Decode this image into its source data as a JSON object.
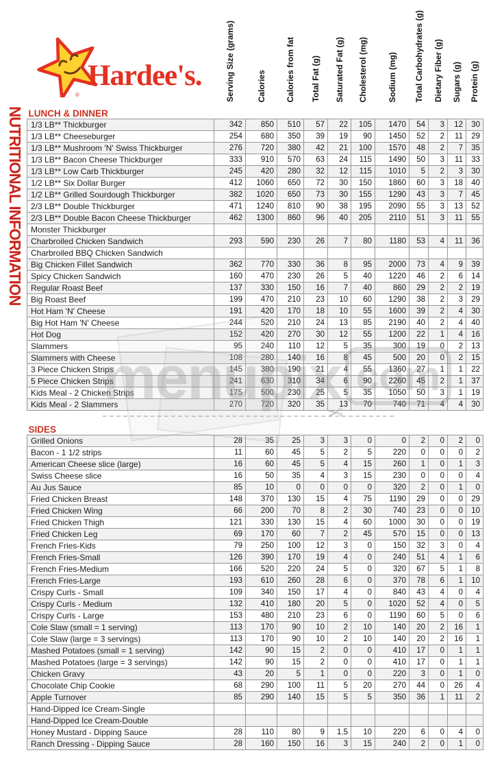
{
  "brand": {
    "wordmark": "Hardee's.",
    "star_icon": "smiling-star",
    "registered_mark": "®",
    "colors": {
      "red": "#e33122",
      "star_yellow": "#ffd12f",
      "face_brown": "#6b3a14"
    }
  },
  "sidebar_title": "NUTRITIONAL INFORMATION",
  "columns": [
    "Serving Size (grams)",
    "Calories",
    "Calories from fat",
    "Total Fat (g)",
    "Saturated Fat (g)",
    "Cholesterol (mg)",
    "Sodium (mg)",
    "Total Carbohydrates (g)",
    "Dietary Fiber (g)",
    "Sugars (g)",
    "Protein (g)"
  ],
  "sections": [
    {
      "title": "LUNCH & DINNER",
      "rows": [
        {
          "name": "1/3 LB** Thickburger",
          "values": [
            342,
            850,
            510,
            57,
            22,
            105,
            1470,
            54,
            3,
            12,
            30
          ]
        },
        {
          "name": "1/3 LB** Cheeseburger",
          "values": [
            254,
            680,
            350,
            39,
            19,
            90,
            1450,
            52,
            2,
            11,
            29
          ]
        },
        {
          "name": "1/3 LB** Mushroom 'N' Swiss Thickburger",
          "values": [
            276,
            720,
            380,
            42,
            21,
            100,
            1570,
            48,
            2,
            7,
            35
          ]
        },
        {
          "name": "1/3 LB** Bacon Cheese Thickburger",
          "values": [
            333,
            910,
            570,
            63,
            24,
            115,
            1490,
            50,
            3,
            11,
            33
          ]
        },
        {
          "name": "1/3 LB** Low Carb Thickburger",
          "values": [
            245,
            420,
            280,
            32,
            12,
            115,
            1010,
            5,
            2,
            3,
            30
          ]
        },
        {
          "name": "1/2 LB** Six Dollar Burger",
          "values": [
            412,
            1060,
            650,
            72,
            30,
            150,
            1860,
            60,
            3,
            18,
            40
          ]
        },
        {
          "name": "1/2 LB** Grilled Sourdough Thickburger",
          "values": [
            382,
            1020,
            650,
            73,
            30,
            155,
            1290,
            43,
            3,
            7,
            45
          ]
        },
        {
          "name": "2/3 LB** Double Thickburger",
          "values": [
            471,
            1240,
            810,
            90,
            38,
            195,
            2090,
            55,
            3,
            13,
            52
          ]
        },
        {
          "name": "2/3 LB** Double Bacon Cheese Thickburger",
          "values": [
            462,
            1300,
            860,
            96,
            40,
            205,
            2110,
            51,
            3,
            11,
            55
          ]
        },
        {
          "name": "Monster Thickburger",
          "values": []
        },
        {
          "name": "Charbroiled Chicken Sandwich",
          "values": [
            293,
            590,
            230,
            26,
            7,
            80,
            1180,
            53,
            4,
            11,
            36
          ]
        },
        {
          "name": "Charbroiled BBQ Chicken Sandwich",
          "values": []
        },
        {
          "name": "Big Chicken Fillet Sandwich",
          "values": [
            362,
            770,
            330,
            36,
            8,
            95,
            2000,
            73,
            4,
            9,
            39
          ]
        },
        {
          "name": "Spicy Chicken Sandwich",
          "values": [
            160,
            470,
            230,
            26,
            5,
            40,
            1220,
            46,
            2,
            6,
            14
          ]
        },
        {
          "name": "Regular Roast Beef",
          "values": [
            137,
            330,
            150,
            16,
            7,
            40,
            860,
            29,
            2,
            2,
            19
          ]
        },
        {
          "name": "Big Roast Beef",
          "values": [
            199,
            470,
            210,
            23,
            10,
            60,
            1290,
            38,
            2,
            3,
            29
          ]
        },
        {
          "name": "Hot Ham 'N' Cheese",
          "values": [
            191,
            420,
            170,
            18,
            10,
            55,
            1600,
            39,
            2,
            4,
            30
          ]
        },
        {
          "name": "Big Hot Ham 'N' Cheese",
          "values": [
            244,
            520,
            210,
            24,
            13,
            85,
            2190,
            40,
            2,
            4,
            40
          ]
        },
        {
          "name": "Hot Dog",
          "values": [
            152,
            420,
            270,
            30,
            12,
            55,
            1200,
            22,
            1,
            4,
            16
          ]
        },
        {
          "name": "Slammers",
          "values": [
            95,
            240,
            110,
            12,
            5,
            35,
            300,
            19,
            0,
            2,
            13
          ]
        },
        {
          "name": "Slammers with Cheese",
          "values": [
            108,
            280,
            140,
            16,
            8,
            45,
            500,
            20,
            0,
            2,
            15
          ]
        },
        {
          "name": "3 Piece Chicken Strips",
          "values": [
            145,
            380,
            190,
            21,
            4,
            55,
            1360,
            27,
            1,
            1,
            22
          ]
        },
        {
          "name": "5 Piece Chicken Strips",
          "values": [
            241,
            630,
            310,
            34,
            6,
            90,
            2260,
            45,
            2,
            1,
            37
          ]
        },
        {
          "name": "Kids Meal - 2 Chicken Strips",
          "values": [
            175,
            500,
            230,
            25,
            5,
            35,
            1050,
            50,
            3,
            1,
            19
          ]
        },
        {
          "name": "Kids Meal - 2 Slammers",
          "values": [
            270,
            720,
            320,
            35,
            13,
            70,
            740,
            71,
            4,
            4,
            30
          ]
        }
      ]
    },
    {
      "title": "SIDES",
      "rows": [
        {
          "name": "Grilled Onions",
          "values": [
            28,
            35,
            25,
            3,
            3,
            0,
            0,
            2,
            0,
            2,
            0
          ]
        },
        {
          "name": "Bacon - 1 1/2 strips",
          "values": [
            11,
            60,
            45,
            5,
            2,
            5,
            220,
            0,
            0,
            0,
            2
          ]
        },
        {
          "name": "American Cheese slice (large)",
          "values": [
            16,
            60,
            45,
            5,
            4,
            15,
            260,
            1,
            0,
            1,
            3
          ]
        },
        {
          "name": "Swiss Cheese slice",
          "values": [
            16,
            50,
            35,
            4,
            3,
            15,
            230,
            0,
            0,
            0,
            4
          ]
        },
        {
          "name": "Au Jus Sauce",
          "values": [
            85,
            10,
            0,
            0,
            0,
            0,
            320,
            2,
            0,
            1,
            0
          ]
        },
        {
          "name": "Fried Chicken Breast",
          "values": [
            148,
            370,
            130,
            15,
            4,
            75,
            1190,
            29,
            0,
            0,
            29
          ]
        },
        {
          "name": "Fried Chicken Wing",
          "values": [
            66,
            200,
            70,
            8,
            2,
            30,
            740,
            23,
            0,
            0,
            10
          ]
        },
        {
          "name": "Fried Chicken Thigh",
          "values": [
            121,
            330,
            130,
            15,
            4,
            60,
            1000,
            30,
            0,
            0,
            19
          ]
        },
        {
          "name": "Fried Chicken Leg",
          "values": [
            69,
            170,
            60,
            7,
            2,
            45,
            570,
            15,
            0,
            0,
            13
          ]
        },
        {
          "name": "French Fries-Kids",
          "values": [
            79,
            250,
            100,
            12,
            3,
            0,
            150,
            32,
            3,
            0,
            4
          ]
        },
        {
          "name": "French Fries-Small",
          "values": [
            126,
            390,
            170,
            19,
            4,
            0,
            240,
            51,
            4,
            1,
            6
          ]
        },
        {
          "name": "French Fries-Medium",
          "values": [
            166,
            520,
            220,
            24,
            5,
            0,
            320,
            67,
            5,
            1,
            8
          ]
        },
        {
          "name": "French Fries-Large",
          "values": [
            193,
            610,
            260,
            28,
            6,
            0,
            370,
            78,
            6,
            1,
            10
          ]
        },
        {
          "name": "Crispy Curls - Small",
          "values": [
            109,
            340,
            150,
            17,
            4,
            0,
            840,
            43,
            4,
            0,
            4
          ]
        },
        {
          "name": "Crispy Curls - Medium",
          "values": [
            132,
            410,
            180,
            20,
            5,
            0,
            1020,
            52,
            4,
            0,
            5
          ]
        },
        {
          "name": "Crispy Curls - Large",
          "values": [
            153,
            480,
            210,
            23,
            6,
            0,
            1190,
            60,
            5,
            0,
            6
          ]
        },
        {
          "name": "Cole Slaw (small = 1 serving)",
          "values": [
            113,
            170,
            90,
            10,
            2,
            10,
            140,
            20,
            2,
            16,
            1
          ]
        },
        {
          "name": "Cole Slaw (large = 3 servings)",
          "values": [
            113,
            170,
            90,
            10,
            2,
            10,
            140,
            20,
            2,
            16,
            1
          ]
        },
        {
          "name": "Mashed Potatoes (small = 1 serving)",
          "values": [
            142,
            90,
            15,
            2,
            0,
            0,
            410,
            17,
            0,
            1,
            1
          ]
        },
        {
          "name": "Mashed Potatoes (large = 3 servings)",
          "values": [
            142,
            90,
            15,
            2,
            0,
            0,
            410,
            17,
            0,
            1,
            1
          ]
        },
        {
          "name": "Chicken Gravy",
          "values": [
            43,
            20,
            5,
            1,
            0,
            0,
            220,
            3,
            0,
            1,
            0
          ]
        },
        {
          "name": "Chocolate Chip Cookie",
          "values": [
            68,
            290,
            100,
            11,
            5,
            20,
            270,
            44,
            0,
            26,
            4
          ]
        },
        {
          "name": "Apple Turnover",
          "values": [
            85,
            290,
            140,
            15,
            5,
            5,
            350,
            36,
            1,
            11,
            2
          ]
        },
        {
          "name": "Hand-Dipped Ice Cream-Single",
          "values": []
        },
        {
          "name": "Hand-Dipped Ice Cream-Double",
          "values": []
        },
        {
          "name": "Honey Mustard - Dipping Sauce",
          "values": [
            28,
            110,
            80,
            9,
            1.5,
            10,
            220,
            6,
            0,
            4,
            0
          ]
        },
        {
          "name": "Ranch Dressing - Dipping Sauce",
          "values": [
            28,
            160,
            150,
            16,
            3,
            15,
            240,
            2,
            0,
            1,
            0
          ]
        }
      ]
    }
  ],
  "watermark": {
    "text": "menupix",
    "suffix": "com",
    "scissors_icon": "✂"
  }
}
